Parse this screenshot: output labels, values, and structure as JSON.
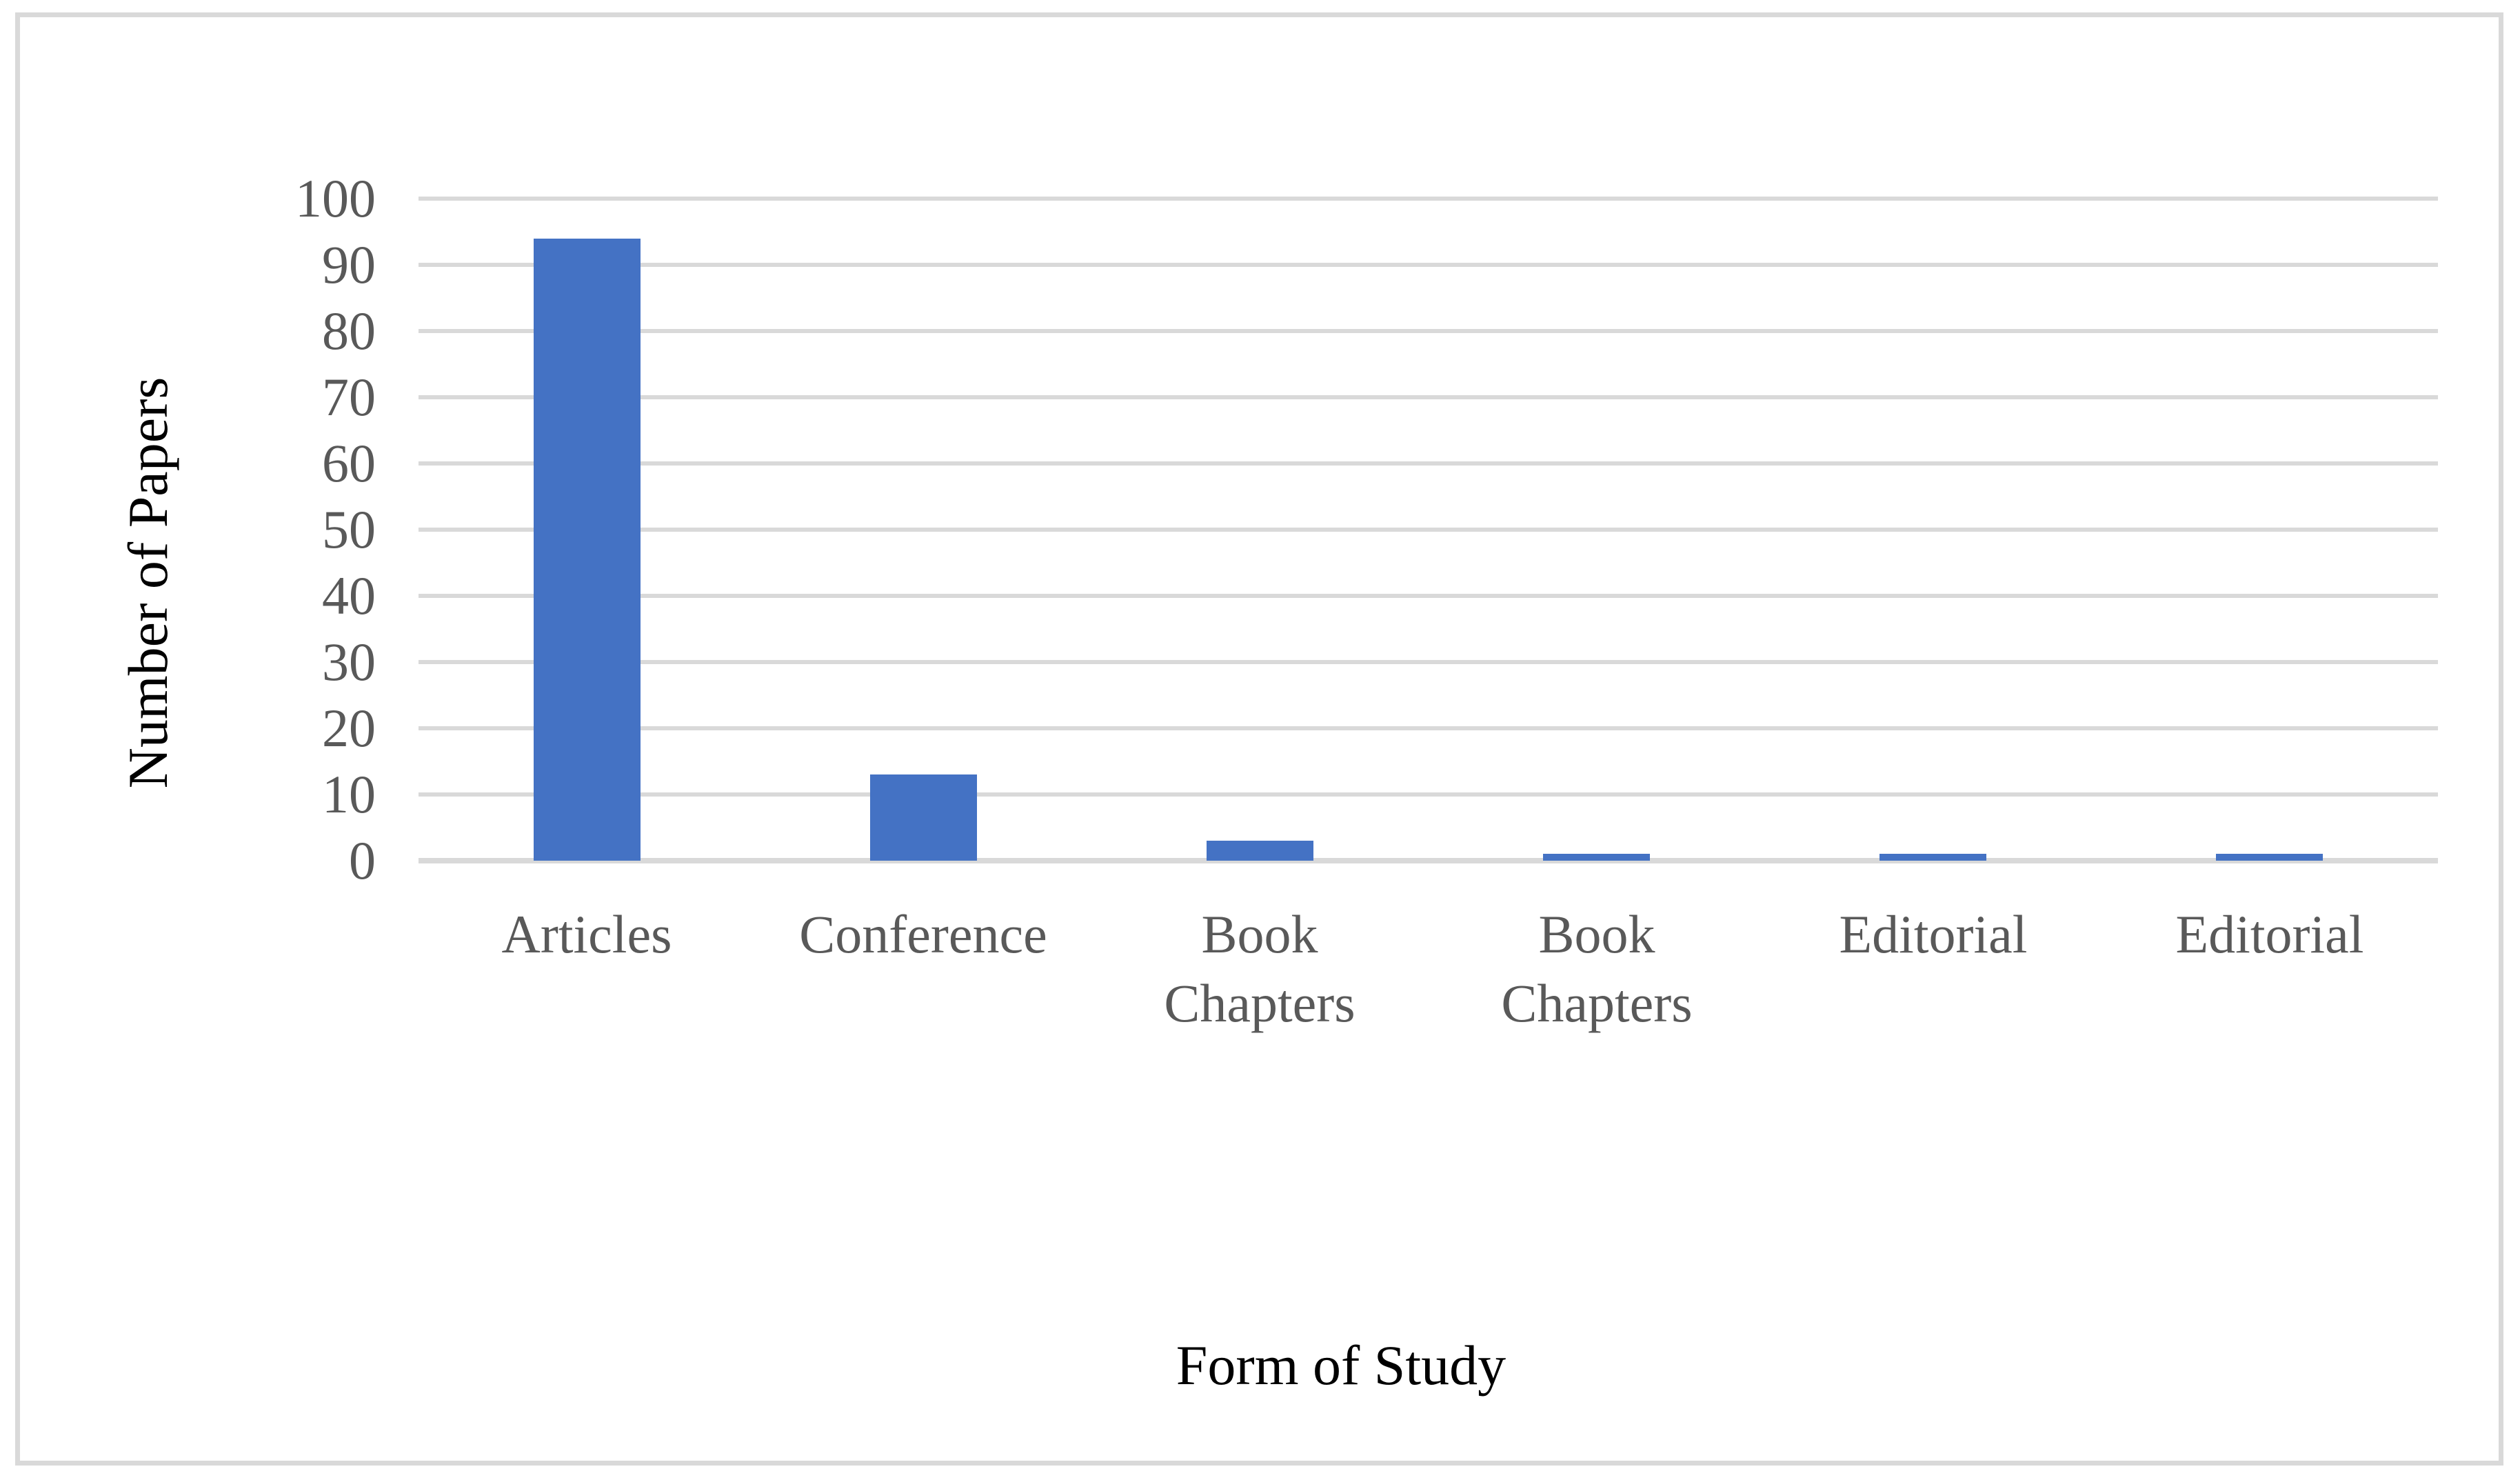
{
  "chart_data": {
    "type": "bar",
    "title": "",
    "xlabel": "Form of Study",
    "ylabel": "Number of Papers",
    "categories": [
      "Articles",
      "Conference",
      "Book Chapters",
      "Book Chapters",
      "Editorial",
      "Editorial"
    ],
    "values": [
      94,
      13,
      3,
      1,
      1,
      1
    ],
    "ylim": [
      0,
      100
    ],
    "yticks": [
      0,
      10,
      20,
      30,
      40,
      50,
      60,
      70,
      80,
      90,
      100
    ],
    "grid": "horizontal",
    "legend": "none",
    "bar_color": "#4472C4",
    "gridline_color": "#D9D9D9",
    "axis_line_color": "#D9D9D9",
    "tick_label_color": "#595959",
    "axis_title_color": "#000000",
    "background_color": "#FFFFFF",
    "border_color": "#D9D9D9"
  }
}
